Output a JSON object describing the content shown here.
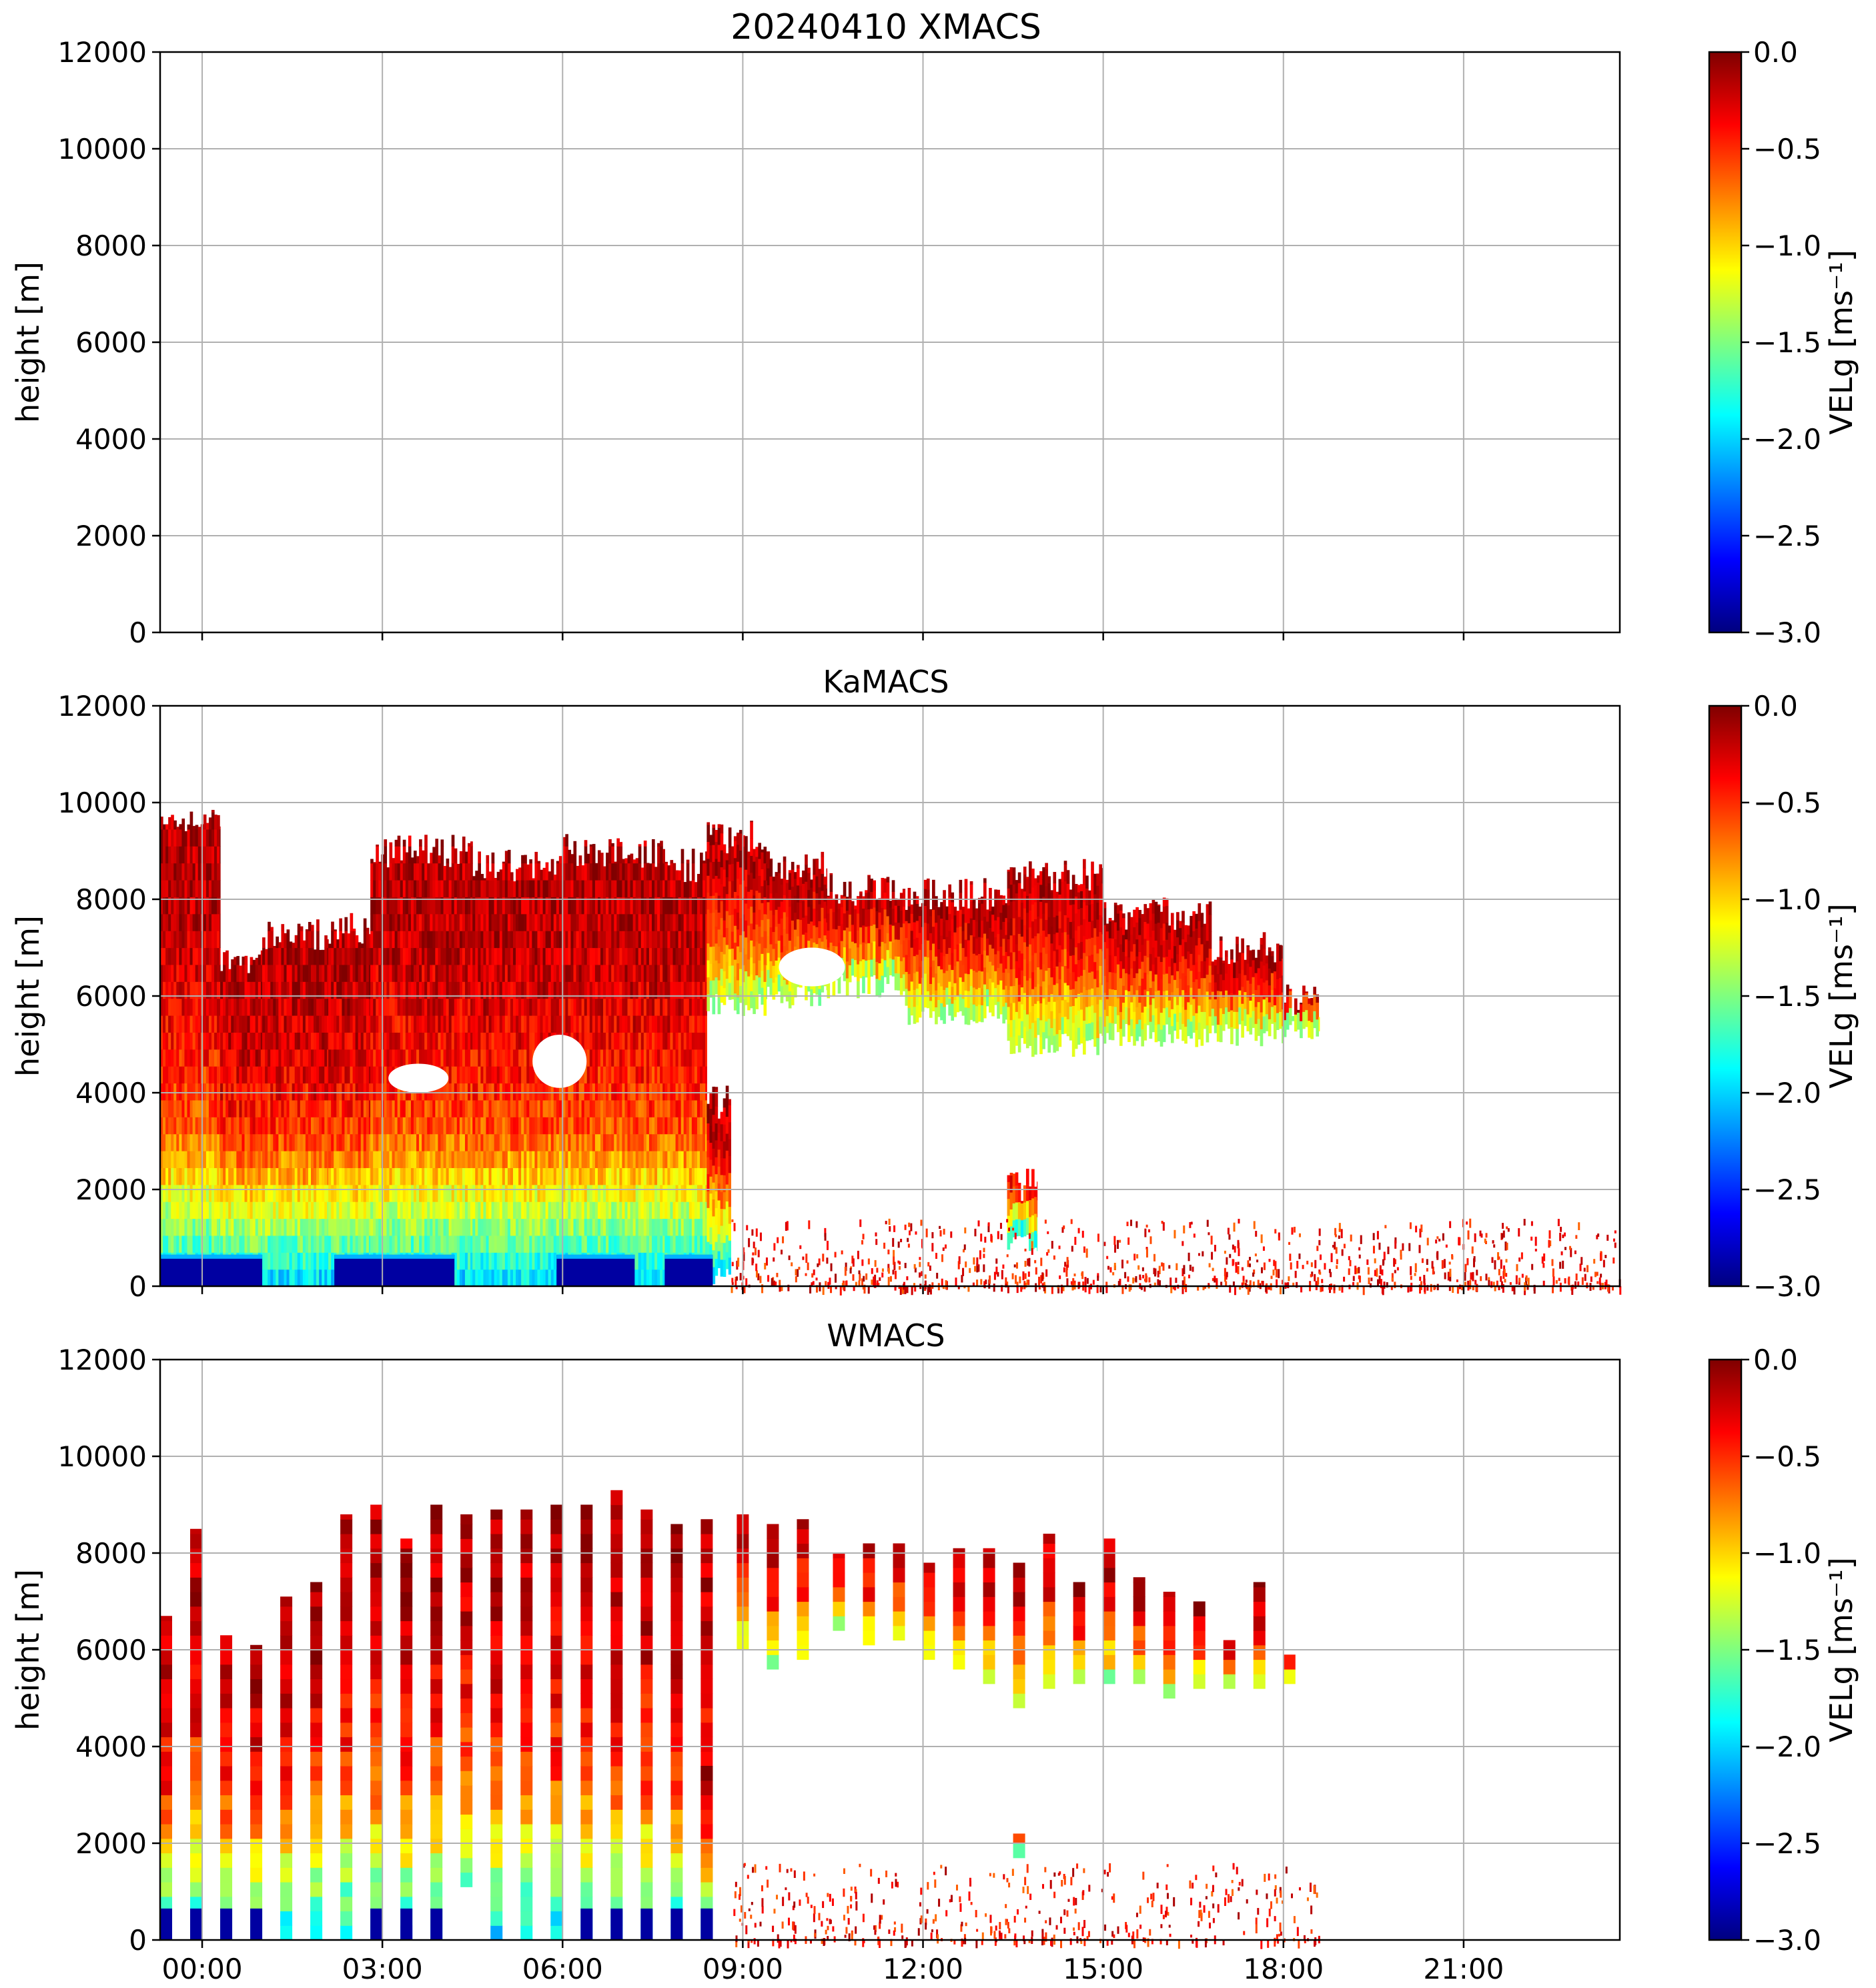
{
  "figure": {
    "colorbar_label": "VELg [ms⁻¹]",
    "colormap": "jet",
    "colormap_stops": [
      "#00007f",
      "#0000ff",
      "#007fff",
      "#00ffff",
      "#7fff7f",
      "#ffff00",
      "#ff7f00",
      "#ff0000",
      "#7f0000"
    ],
    "grid_color": "#b0b0b0"
  },
  "chart_data": [
    {
      "type": "heatmap",
      "title": "20240410 XMACS",
      "xlabel": "",
      "ylabel": "height [m]",
      "ylim": [
        0,
        12000
      ],
      "y_ticks": [
        "0",
        "2000",
        "4000",
        "6000",
        "8000",
        "10000",
        "12000"
      ],
      "x_ticks": [],
      "x_range_hours": [
        -0.7,
        23.6
      ],
      "colorbar_range": [
        -3.0,
        0.0
      ],
      "colorbar_ticks": [
        "−3.0",
        "−2.5",
        "−2.0",
        "−1.5",
        "−1.0",
        "−0.5",
        "0.0"
      ],
      "grid": true,
      "mode": "empty",
      "segments": [],
      "scatter_bands": []
    },
    {
      "type": "heatmap",
      "title": "KaMACS",
      "xlabel": "",
      "ylabel": "height [m]",
      "ylim": [
        0,
        12000
      ],
      "y_ticks": [
        "0",
        "2000",
        "4000",
        "6000",
        "8000",
        "10000",
        "12000"
      ],
      "x_ticks": [],
      "x_range_hours": [
        -0.7,
        23.6
      ],
      "colorbar_range": [
        -3.0,
        0.0
      ],
      "colorbar_ticks": [
        "−3.0",
        "−2.5",
        "−2.0",
        "−1.5",
        "−1.0",
        "−0.5",
        "0.0"
      ],
      "grid": true,
      "mode": "continuous",
      "segments": [
        {
          "t0": -0.7,
          "t1": 0.3,
          "base": 0,
          "top": 9600
        },
        {
          "t0": 0.3,
          "t1": 1.0,
          "base": 0,
          "top": 6700
        },
        {
          "t0": 1.0,
          "t1": 2.1,
          "base": 0,
          "top": 7300
        },
        {
          "t0": 2.1,
          "t1": 2.8,
          "base": 0,
          "top": 7400
        },
        {
          "t0": 2.8,
          "t1": 4.5,
          "base": 0,
          "top": 9000
        },
        {
          "t0": 4.5,
          "t1": 6.0,
          "base": 0,
          "top": 8700
        },
        {
          "t0": 6.0,
          "t1": 7.7,
          "base": 0,
          "top": 9000
        },
        {
          "t0": 7.7,
          "t1": 8.4,
          "base": 0,
          "top": 8700
        },
        {
          "t0": 8.4,
          "t1": 9.4,
          "base": 5800,
          "top": 9300
        },
        {
          "t0": 9.4,
          "t1": 10.4,
          "base": 6000,
          "top": 8700
        },
        {
          "t0": 10.4,
          "t1": 11.7,
          "base": 6200,
          "top": 8200
        },
        {
          "t0": 11.7,
          "t1": 13.4,
          "base": 5600,
          "top": 8100
        },
        {
          "t0": 13.4,
          "t1": 15.0,
          "base": 5000,
          "top": 8500
        },
        {
          "t0": 15.0,
          "t1": 16.8,
          "base": 5200,
          "top": 7700
        },
        {
          "t0": 16.8,
          "t1": 18.0,
          "base": 5200,
          "top": 7000
        },
        {
          "t0": 18.0,
          "t1": 18.6,
          "base": 5300,
          "top": 5900
        },
        {
          "t0": 13.4,
          "t1": 13.9,
          "base": 900,
          "top": 2100
        },
        {
          "t0": 8.4,
          "t1": 8.8,
          "base": 300,
          "top": 3800
        }
      ],
      "gaps": [
        {
          "t0": 3.1,
          "t1": 4.1,
          "base": 4000,
          "top": 4600
        },
        {
          "t0": 5.5,
          "t1": 6.4,
          "base": 4100,
          "top": 5200
        },
        {
          "t0": 9.6,
          "t1": 10.7,
          "base": 6200,
          "top": 7000
        }
      ],
      "near_surface_bands": [
        {
          "t0": -0.7,
          "t1": 1.0
        },
        {
          "t0": 2.2,
          "t1": 4.2
        },
        {
          "t0": 5.9,
          "t1": 7.2
        },
        {
          "t0": 7.7,
          "t1": 8.5
        }
      ],
      "scatter_bands": [
        {
          "t0": 8.8,
          "t1": 23.6,
          "base": 0,
          "top": 1400,
          "count": 900
        }
      ]
    },
    {
      "type": "heatmap",
      "title": "WMACS",
      "xlabel": "",
      "ylabel": "height [m]",
      "ylim": [
        0,
        12000
      ],
      "y_ticks": [
        "0",
        "2000",
        "4000",
        "6000",
        "8000",
        "10000",
        "12000"
      ],
      "x_ticks": [
        "00:00",
        "03:00",
        "06:00",
        "09:00",
        "12:00",
        "15:00",
        "18:00",
        "21:00"
      ],
      "x_ticks_hours": [
        0,
        3,
        6,
        9,
        12,
        15,
        18,
        21
      ],
      "x_range_hours": [
        -0.7,
        23.6
      ],
      "colorbar_range": [
        -3.0,
        0.0
      ],
      "colorbar_ticks": [
        "−3.0",
        "−2.5",
        "−2.0",
        "−1.5",
        "−1.0",
        "−0.5",
        "0.0"
      ],
      "grid": true,
      "mode": "stripes",
      "stripe_width_hours": 0.2,
      "stripes": [
        {
          "t": -0.6,
          "base": 0,
          "top": 6700
        },
        {
          "t": -0.1,
          "base": 0,
          "top": 8500
        },
        {
          "t": 0.4,
          "base": 0,
          "top": 6300
        },
        {
          "t": 0.9,
          "base": 0,
          "top": 6100
        },
        {
          "t": 1.4,
          "base": 0,
          "top": 7100
        },
        {
          "t": 1.9,
          "base": 0,
          "top": 7400
        },
        {
          "t": 2.4,
          "base": 0,
          "top": 8800
        },
        {
          "t": 2.9,
          "base": 0,
          "top": 9000
        },
        {
          "t": 3.4,
          "base": 0,
          "top": 8300
        },
        {
          "t": 3.9,
          "base": 0,
          "top": 9000
        },
        {
          "t": 4.4,
          "base": 1100,
          "top": 8800
        },
        {
          "t": 4.9,
          "base": 0,
          "top": 8900
        },
        {
          "t": 5.4,
          "base": 0,
          "top": 8900
        },
        {
          "t": 5.9,
          "base": 0,
          "top": 9000
        },
        {
          "t": 6.4,
          "base": 0,
          "top": 9000
        },
        {
          "t": 6.9,
          "base": 0,
          "top": 9300
        },
        {
          "t": 7.4,
          "base": 0,
          "top": 8900
        },
        {
          "t": 7.9,
          "base": 0,
          "top": 8600
        },
        {
          "t": 8.4,
          "base": 0,
          "top": 8700
        },
        {
          "t": 9.0,
          "base": 6000,
          "top": 8800
        },
        {
          "t": 9.5,
          "base": 5600,
          "top": 8600
        },
        {
          "t": 10.0,
          "base": 5800,
          "top": 8700
        },
        {
          "t": 10.6,
          "base": 6400,
          "top": 8000
        },
        {
          "t": 11.1,
          "base": 6100,
          "top": 8200
        },
        {
          "t": 11.6,
          "base": 6200,
          "top": 8200
        },
        {
          "t": 12.1,
          "base": 5800,
          "top": 7800
        },
        {
          "t": 12.6,
          "base": 5600,
          "top": 8100
        },
        {
          "t": 13.1,
          "base": 5300,
          "top": 8100
        },
        {
          "t": 13.6,
          "base": 4800,
          "top": 7800
        },
        {
          "t": 14.1,
          "base": 5200,
          "top": 8400
        },
        {
          "t": 14.6,
          "base": 5300,
          "top": 7400
        },
        {
          "t": 15.1,
          "base": 5300,
          "top": 8300
        },
        {
          "t": 15.6,
          "base": 5300,
          "top": 7500
        },
        {
          "t": 16.1,
          "base": 5000,
          "top": 7200
        },
        {
          "t": 16.6,
          "base": 5200,
          "top": 7000
        },
        {
          "t": 17.1,
          "base": 5200,
          "top": 6200
        },
        {
          "t": 17.6,
          "base": 5200,
          "top": 7400
        },
        {
          "t": 18.1,
          "base": 5300,
          "top": 5900
        },
        {
          "t": 13.6,
          "base": 1700,
          "top": 2200
        },
        {
          "t": 8.4,
          "base": 0,
          "top": 3600
        }
      ],
      "near_surface_bands": [
        {
          "t0": -0.7,
          "t1": 1.1
        },
        {
          "t0": 2.8,
          "t1": 4.2
        },
        {
          "t0": 6.3,
          "t1": 8.6
        }
      ],
      "scatter_bands": [
        {
          "t0": 8.8,
          "t1": 18.6,
          "base": 0,
          "top": 1600,
          "count": 420
        }
      ]
    }
  ]
}
